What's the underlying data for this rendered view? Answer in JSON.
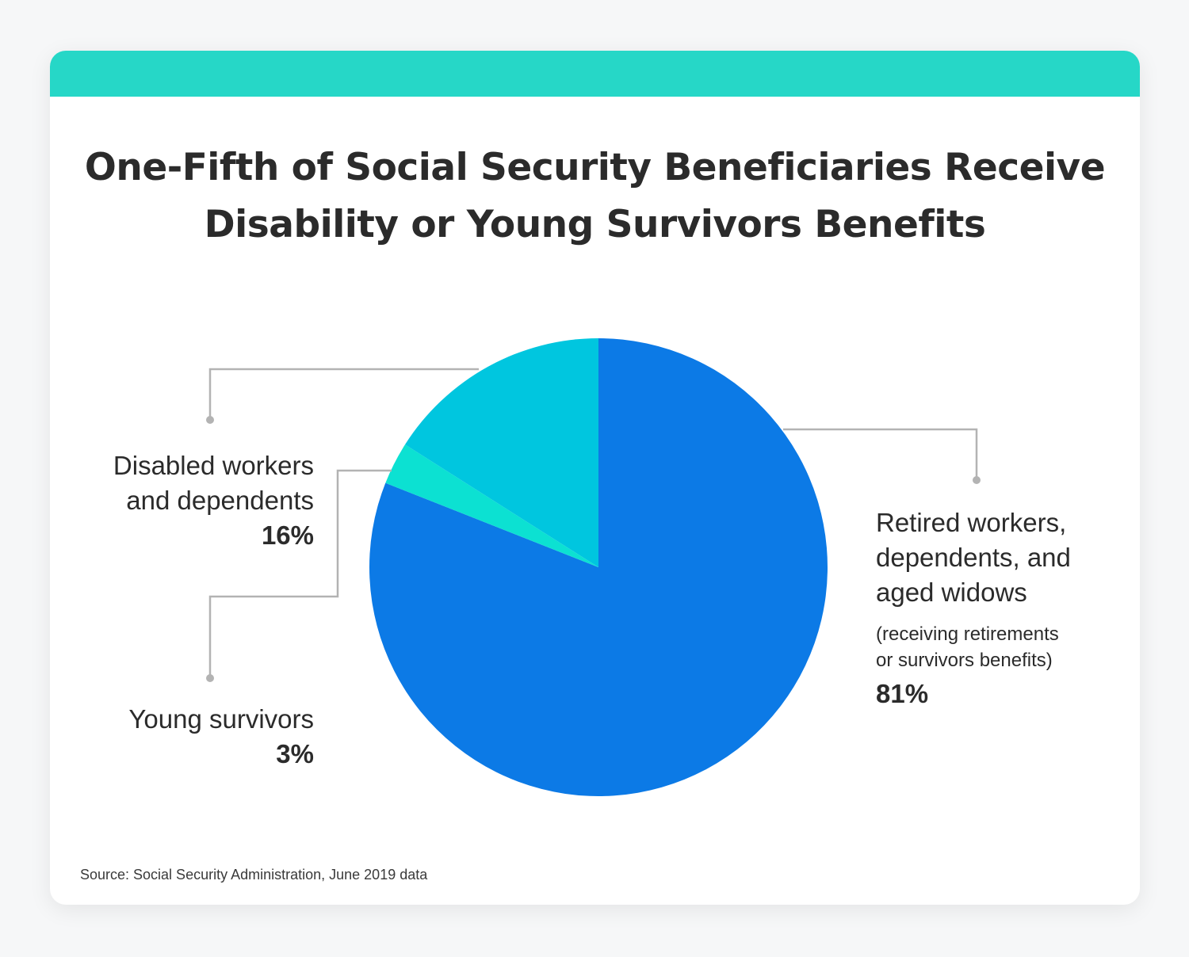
{
  "title_line1": "One-Fifth of Social Security Beneficiaries Receive",
  "title_line2": "Disability or Young Survivors Benefits",
  "source": "Source: Social Security Administration, June 2019 data",
  "colors": {
    "accent_bar": "#26d7c7",
    "leader": "#b3b3b3"
  },
  "chart_data": {
    "type": "pie",
    "slices": [
      {
        "label_lines": [
          "Retired workers,",
          "dependents, and",
          "aged widows"
        ],
        "note_lines": [
          "(receiving retirements",
          "or survivors benefits)"
        ],
        "value": 81,
        "value_label": "81%",
        "color": "#0c7ae6"
      },
      {
        "label_lines": [
          "Young survivors"
        ],
        "note_lines": [],
        "value": 3,
        "value_label": "3%",
        "color": "#0ce1d2"
      },
      {
        "label_lines": [
          "Disabled workers",
          "and dependents"
        ],
        "note_lines": [],
        "value": 16,
        "value_label": "16%",
        "color": "#00c6df"
      }
    ],
    "start": "12 o'clock",
    "direction": "clockwise"
  }
}
